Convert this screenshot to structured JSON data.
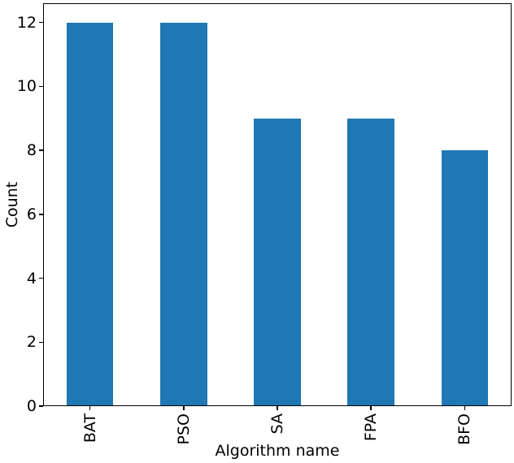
{
  "figure": {
    "background": "#ffffff",
    "text_color": "#000000",
    "axis_color": "#000000"
  },
  "chart_data": {
    "type": "bar",
    "categories": [
      "BAT",
      "PSO",
      "SA",
      "FPA",
      "BFO"
    ],
    "values": [
      12,
      12,
      9,
      9,
      8
    ],
    "title": "",
    "xlabel": "Algorithm name",
    "ylabel": "Count",
    "ylim": [
      0,
      12.6
    ],
    "yticks": [
      0,
      2,
      4,
      6,
      8,
      10,
      12
    ],
    "bar_color": "#1f77b4",
    "bar_width_fraction": 0.5,
    "x_tick_rotation_deg": 90,
    "grid": false,
    "legend": "none"
  }
}
